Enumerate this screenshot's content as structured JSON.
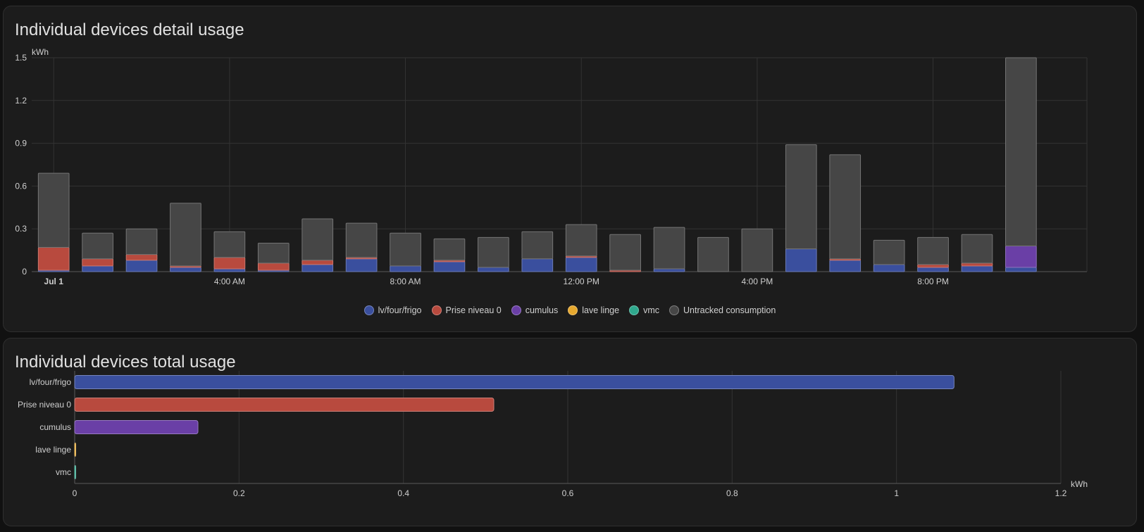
{
  "colors": {
    "lv_four_frigo": "#3a4f9e",
    "prise_niveau_0": "#b84a3e",
    "cumulus": "#6a3fa6",
    "lave_linge": "#e6a82e",
    "vmc": "#2fa88d",
    "untracked": "#464646"
  },
  "chart_data": [
    {
      "type": "bar",
      "stacked": true,
      "title": "Individual devices detail usage",
      "ylabel": "kWh",
      "ylim": [
        0,
        1.5
      ],
      "yticks": [
        "0",
        "0.3",
        "0.6",
        "0.9",
        "1.2",
        "1.5"
      ],
      "xticks": [
        "Jul 1",
        "4:00 AM",
        "8:00 AM",
        "12:00 PM",
        "4:00 PM",
        "8:00 PM"
      ],
      "categories": [
        "00:00",
        "01:00",
        "02:00",
        "03:00",
        "04:00",
        "05:00",
        "06:00",
        "07:00",
        "08:00",
        "09:00",
        "10:00",
        "11:00",
        "12:00",
        "13:00",
        "14:00",
        "15:00",
        "16:00",
        "17:00",
        "18:00",
        "19:00",
        "20:00",
        "21:00",
        "22:00"
      ],
      "grid": true,
      "legend_position": "bottom-center",
      "series": [
        {
          "name": "lv/four/frigo",
          "color_key": "lv_four_frigo",
          "values": [
            0.01,
            0.04,
            0.08,
            0.03,
            0.02,
            0.01,
            0.05,
            0.09,
            0.04,
            0.07,
            0.03,
            0.09,
            0.1,
            0.0,
            0.02,
            0.0,
            0.0,
            0.16,
            0.08,
            0.05,
            0.03,
            0.04,
            0.03
          ]
        },
        {
          "name": "Prise niveau 0",
          "color_key": "prise_niveau_0",
          "values": [
            0.16,
            0.05,
            0.04,
            0.01,
            0.08,
            0.05,
            0.03,
            0.01,
            0.0,
            0.01,
            0.0,
            0.0,
            0.01,
            0.01,
            0.0,
            0.0,
            0.0,
            0.0,
            0.01,
            0.0,
            0.02,
            0.02,
            0.0
          ]
        },
        {
          "name": "cumulus",
          "color_key": "cumulus",
          "values": [
            0,
            0,
            0,
            0,
            0,
            0,
            0,
            0,
            0,
            0,
            0,
            0,
            0,
            0,
            0,
            0,
            0,
            0,
            0,
            0,
            0,
            0,
            0.15
          ]
        },
        {
          "name": "lave linge",
          "color_key": "lave_linge",
          "values": [
            0,
            0,
            0,
            0,
            0,
            0,
            0,
            0,
            0,
            0,
            0,
            0,
            0,
            0,
            0,
            0,
            0,
            0,
            0,
            0,
            0,
            0,
            0
          ]
        },
        {
          "name": "vmc",
          "color_key": "vmc",
          "values": [
            0,
            0,
            0,
            0,
            0,
            0,
            0,
            0,
            0,
            0,
            0,
            0,
            0,
            0,
            0,
            0,
            0,
            0,
            0,
            0,
            0,
            0,
            0
          ]
        },
        {
          "name": "Untracked consumption",
          "color_key": "untracked",
          "values": [
            0.52,
            0.18,
            0.18,
            0.44,
            0.18,
            0.14,
            0.29,
            0.24,
            0.23,
            0.15,
            0.21,
            0.19,
            0.22,
            0.25,
            0.29,
            0.24,
            0.3,
            0.73,
            0.73,
            0.17,
            0.19,
            0.2,
            1.32
          ]
        }
      ]
    },
    {
      "type": "bar",
      "orientation": "horizontal",
      "title": "Individual devices total usage",
      "xlabel": "kWh",
      "xlim": [
        0,
        1.2
      ],
      "xticks": [
        "0",
        "0.2",
        "0.4",
        "0.6",
        "0.8",
        "1",
        "1.2"
      ],
      "grid": true,
      "categories": [
        "lv/four/frigo",
        "Prise niveau 0",
        "cumulus",
        "lave linge",
        "vmc"
      ],
      "color_keys": [
        "lv_four_frigo",
        "prise_niveau_0",
        "cumulus",
        "lave_linge",
        "vmc"
      ],
      "values": [
        1.07,
        0.51,
        0.15,
        0.001,
        0.001
      ]
    }
  ]
}
